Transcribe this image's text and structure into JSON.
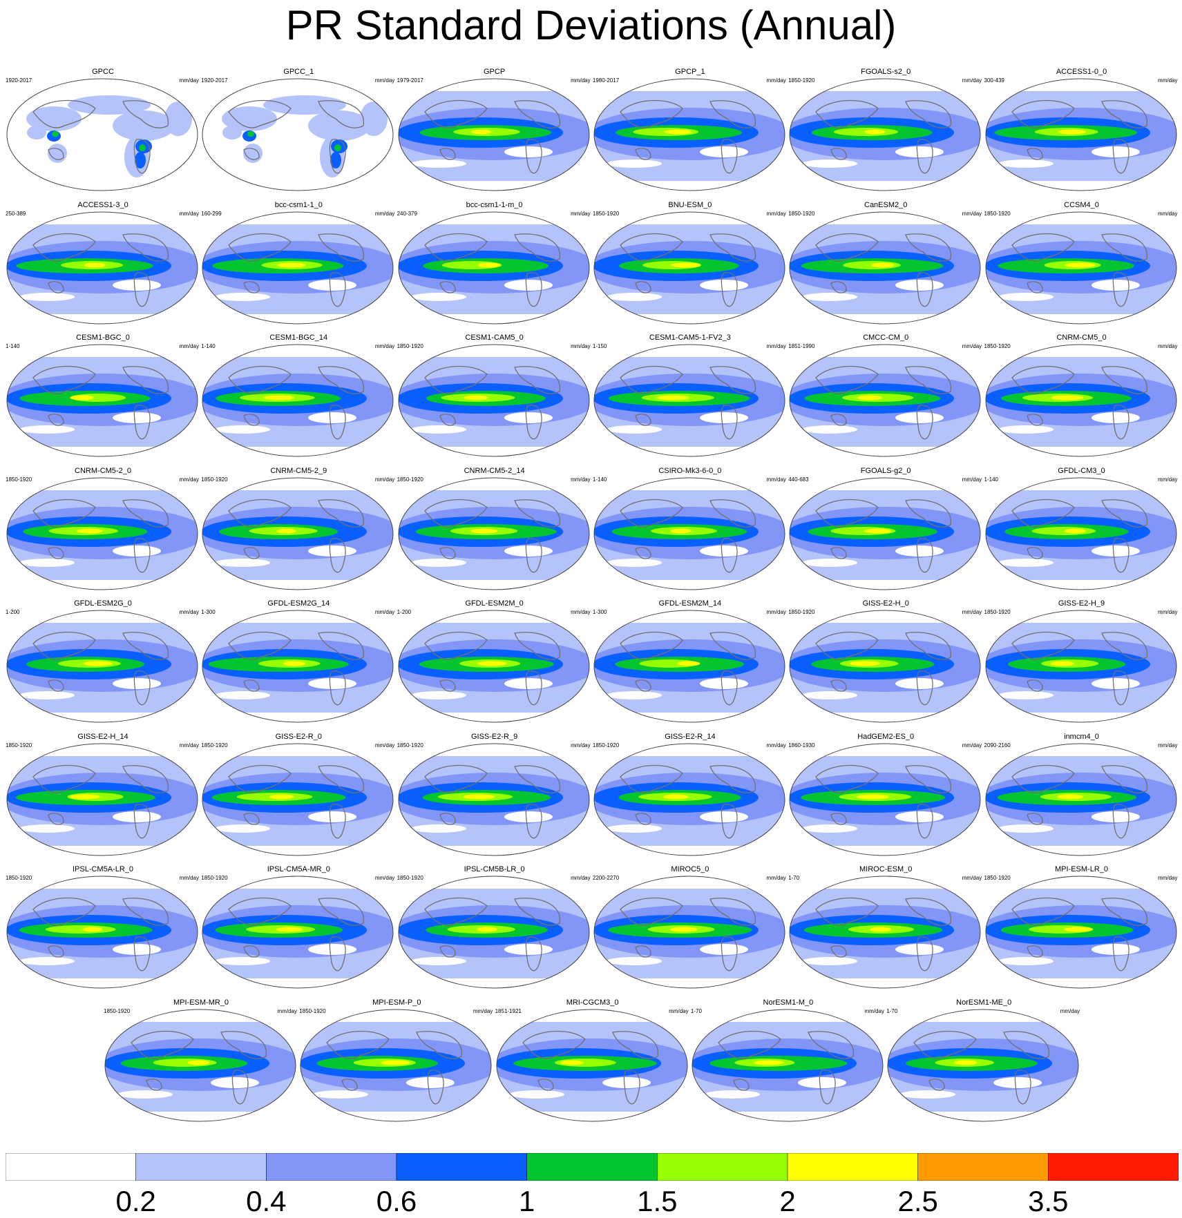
{
  "title": "PR Standard Deviations (Annual)",
  "units": "mm/day",
  "colorbar": {
    "labels": [
      "0.2",
      "0.4",
      "0.6",
      "1",
      "1.5",
      "2",
      "2.5",
      "3.5"
    ],
    "colors": [
      "#ffffff",
      "#b4c3fa",
      "#8296f8",
      "#0a5fff",
      "#04c530",
      "#96ff00",
      "#ffff00",
      "#ff9a00",
      "#ff1a00"
    ]
  },
  "panels": [
    {
      "name": "GPCC",
      "years": "1920-2017"
    },
    {
      "name": "GPCC_1",
      "years": "1920-2017"
    },
    {
      "name": "GPCP",
      "years": "1979-2017"
    },
    {
      "name": "GPCP_1",
      "years": "1980-2017"
    },
    {
      "name": "FGOALS-s2_0",
      "years": "1850-1920"
    },
    {
      "name": "ACCESS1-0_0",
      "years": "300-439"
    },
    {
      "name": "ACCESS1-3_0",
      "years": "250-389"
    },
    {
      "name": "bcc-csm1-1_0",
      "years": "160-299"
    },
    {
      "name": "bcc-csm1-1-m_0",
      "years": "240-379"
    },
    {
      "name": "BNU-ESM_0",
      "years": "1850-1920"
    },
    {
      "name": "CanESM2_0",
      "years": "1850-1920"
    },
    {
      "name": "CCSM4_0",
      "years": "1850-1920"
    },
    {
      "name": "CESM1-BGC_0",
      "years": "1-140"
    },
    {
      "name": "CESM1-BGC_14",
      "years": "1-140"
    },
    {
      "name": "CESM1-CAM5_0",
      "years": "1850-1920"
    },
    {
      "name": "CESM1-CAM5-1-FV2_3",
      "years": "1-150"
    },
    {
      "name": "CMCC-CM_0",
      "years": "1851-1990"
    },
    {
      "name": "CNRM-CM5_0",
      "years": "1850-1920"
    },
    {
      "name": "CNRM-CM5-2_0",
      "years": "1850-1920"
    },
    {
      "name": "CNRM-CM5-2_9",
      "years": "1850-1920"
    },
    {
      "name": "CNRM-CM5-2_14",
      "years": "1850-1920"
    },
    {
      "name": "CSIRO-Mk3-6-0_0",
      "years": "1-140"
    },
    {
      "name": "FGOALS-g2_0",
      "years": "440-683"
    },
    {
      "name": "GFDL-CM3_0",
      "years": "1-140"
    },
    {
      "name": "GFDL-ESM2G_0",
      "years": "1-200"
    },
    {
      "name": "GFDL-ESM2G_14",
      "years": "1-300"
    },
    {
      "name": "GFDL-ESM2M_0",
      "years": "1-200"
    },
    {
      "name": "GFDL-ESM2M_14",
      "years": "1-300"
    },
    {
      "name": "GISS-E2-H_0",
      "years": "1850-1920"
    },
    {
      "name": "GISS-E2-H_9",
      "years": "1850-1920"
    },
    {
      "name": "GISS-E2-H_14",
      "years": "1850-1920"
    },
    {
      "name": "GISS-E2-R_0",
      "years": "1850-1920"
    },
    {
      "name": "GISS-E2-R_9",
      "years": "1850-1920"
    },
    {
      "name": "GISS-E2-R_14",
      "years": "1850-1920"
    },
    {
      "name": "HadGEM2-ES_0",
      "years": "1860-1930"
    },
    {
      "name": "inmcm4_0",
      "years": "2090-2160"
    },
    {
      "name": "IPSL-CM5A-LR_0",
      "years": "1850-1920"
    },
    {
      "name": "IPSL-CM5A-MR_0",
      "years": "1850-1920"
    },
    {
      "name": "IPSL-CM5B-LR_0",
      "years": "1850-1920"
    },
    {
      "name": "MIROC5_0",
      "years": "2200-2270"
    },
    {
      "name": "MIROC-ESM_0",
      "years": "1-70"
    },
    {
      "name": "MPI-ESM-LR_0",
      "years": "1850-1920"
    },
    {
      "name": "MPI-ESM-MR_0",
      "years": "1850-1920"
    },
    {
      "name": "MPI-ESM-P_0",
      "years": "1850-1920"
    },
    {
      "name": "MRI-CGCM3_0",
      "years": "1851-1921"
    },
    {
      "name": "NorESM1-M_0",
      "years": "1-70"
    },
    {
      "name": "NorESM1-ME_0",
      "years": "1-70"
    }
  ]
}
